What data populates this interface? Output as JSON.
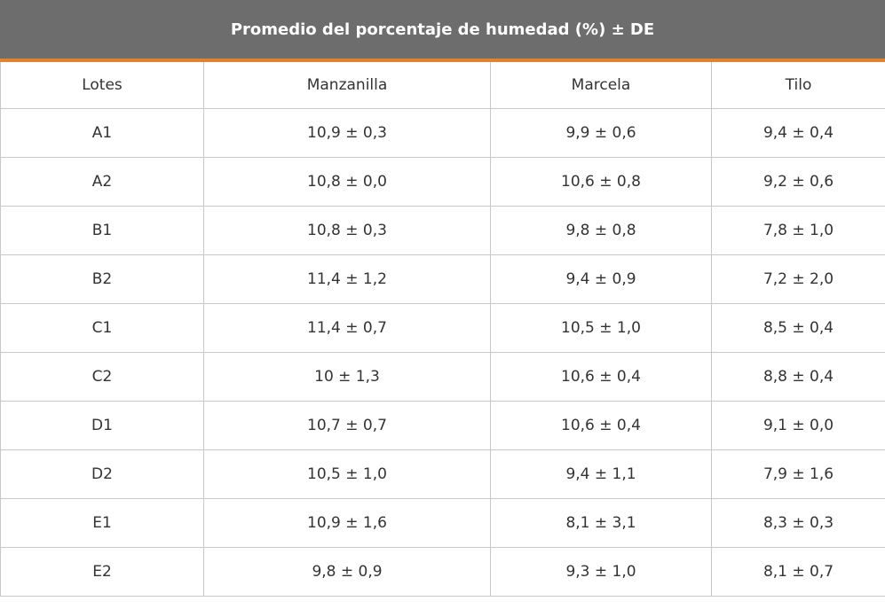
{
  "header": {
    "title": "Promedio del porcentaje de humedad (%) ± DE"
  },
  "table": {
    "columns": [
      "Lotes",
      "Manzanilla",
      "Marcela",
      "Tilo"
    ],
    "rows": [
      [
        "A1",
        "10,9 ± 0,3",
        "9,9 ± 0,6",
        "9,4 ± 0,4"
      ],
      [
        "A2",
        "10,8 ± 0,0",
        "10,6 ± 0,8",
        "9,2 ± 0,6"
      ],
      [
        "B1",
        "10,8 ± 0,3",
        "9,8 ± 0,8",
        "7,8 ± 1,0"
      ],
      [
        "B2",
        "11,4 ± 1,2",
        "9,4 ± 0,9",
        "7,2 ± 2,0"
      ],
      [
        "C1",
        "11,4 ± 0,7",
        "10,5 ± 1,0",
        "8,5 ± 0,4"
      ],
      [
        "C2",
        "10 ± 1,3",
        "10,6 ± 0,4",
        "8,8 ± 0,4"
      ],
      [
        "D1",
        "10,7 ± 0,7",
        "10,6 ± 0,4",
        "9,1 ± 0,0"
      ],
      [
        "D2",
        "10,5 ± 1,0",
        "9,4 ± 1,1",
        "7,9 ± 1,6"
      ],
      [
        "E1",
        "10,9 ± 1,6",
        "8,1 ± 3,1",
        "8,3 ± 0,3"
      ],
      [
        "E2",
        "9,8 ± 0,9",
        "9,3 ± 1,0",
        "8,1 ± 0,7"
      ]
    ]
  }
}
